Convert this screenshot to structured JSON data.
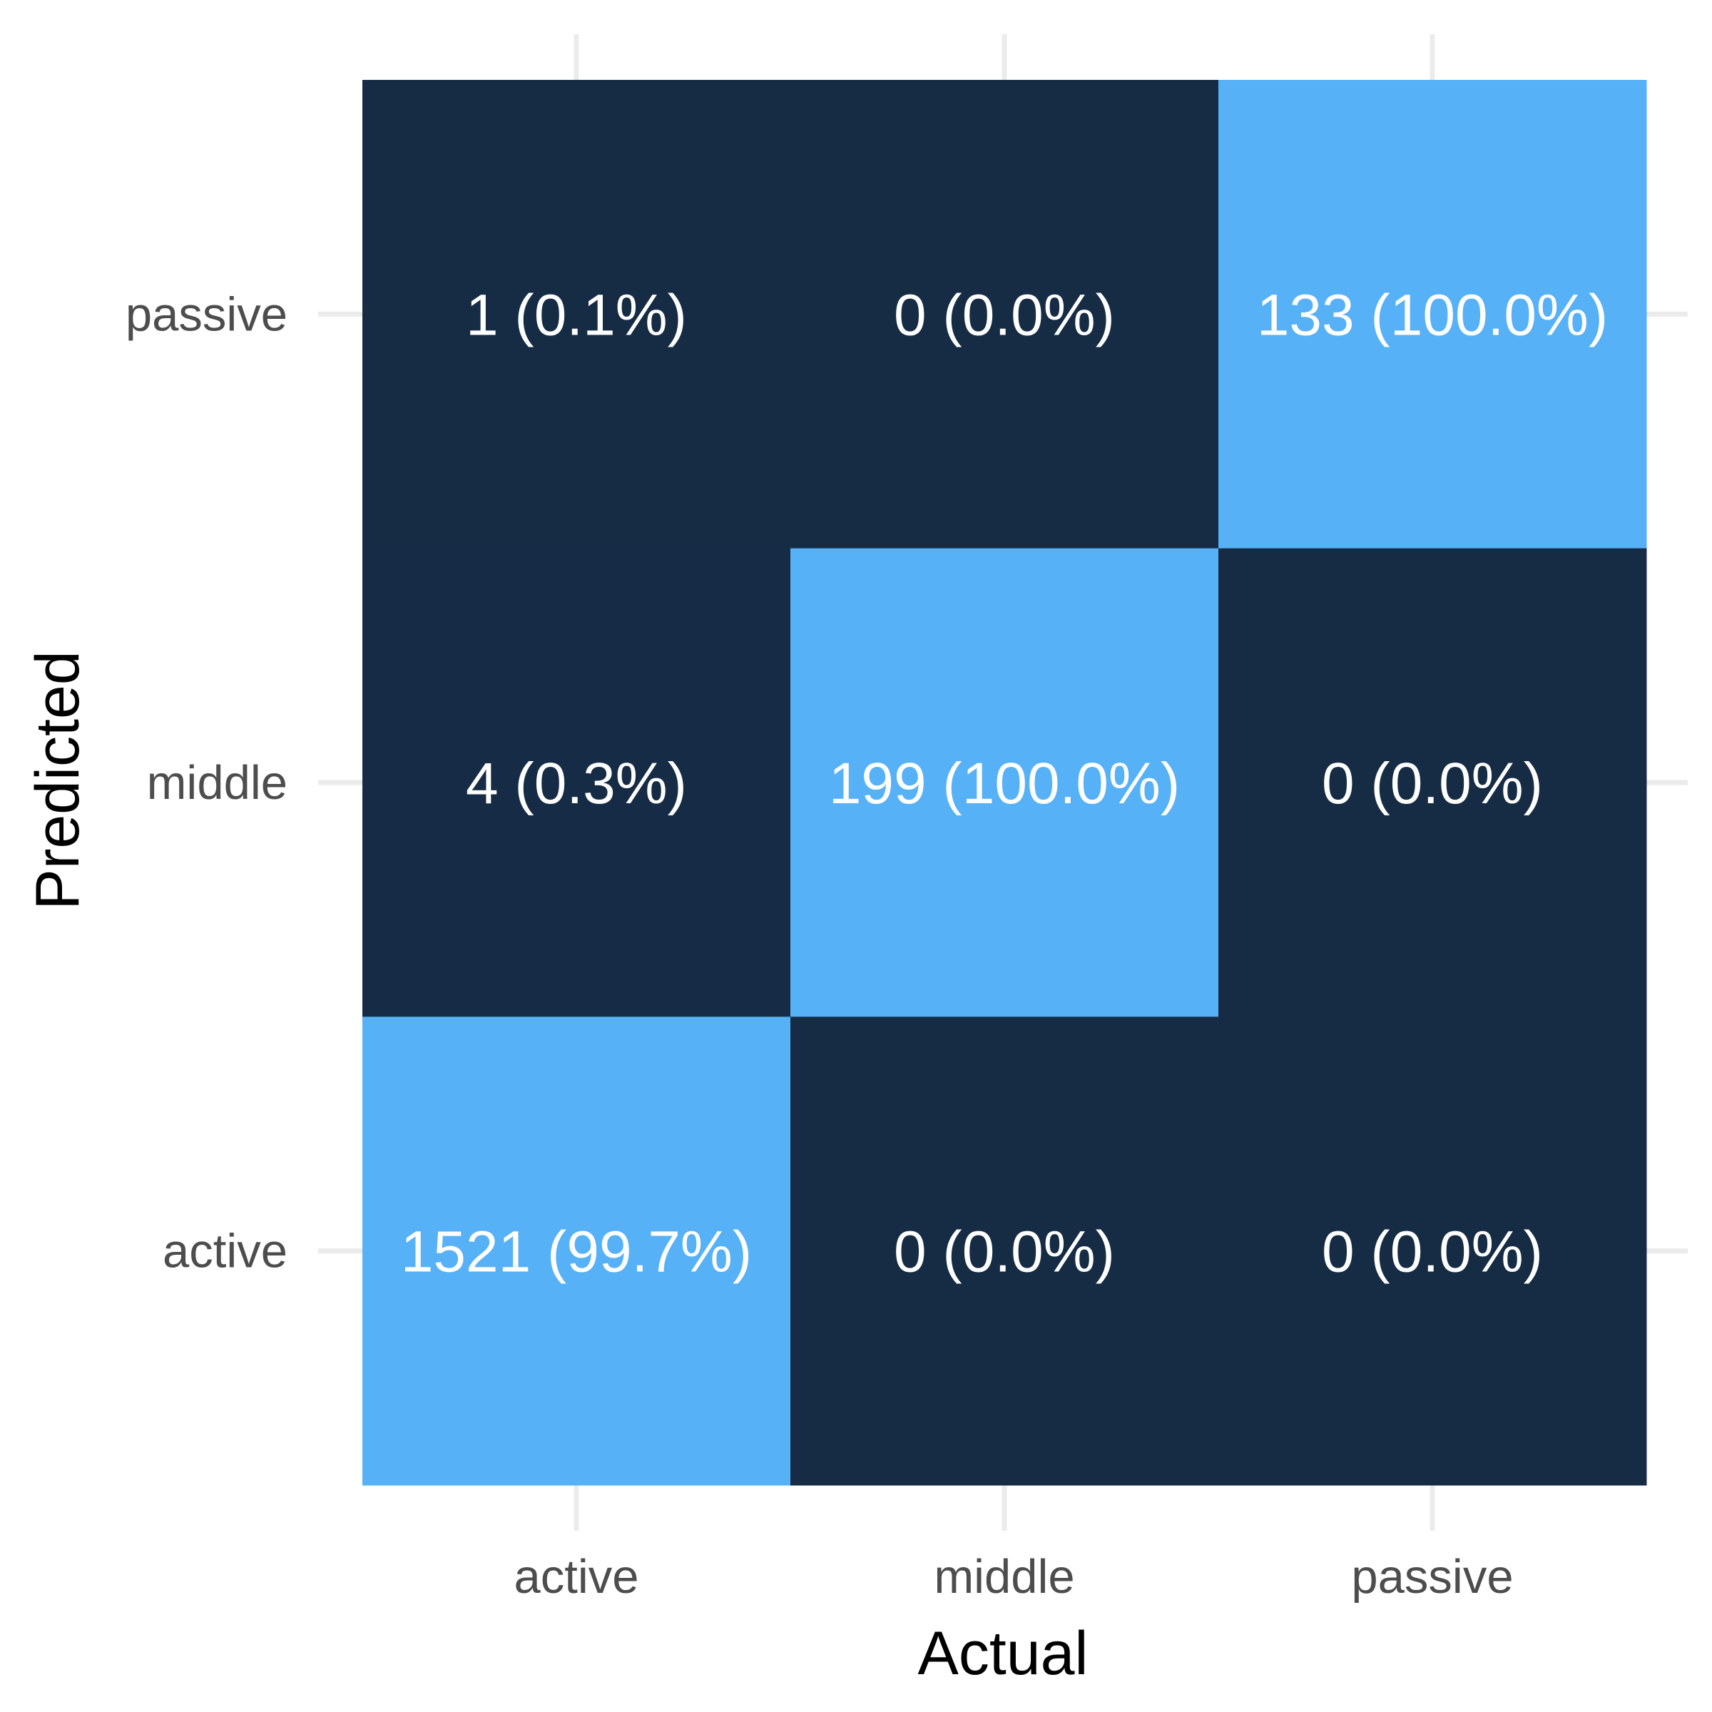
{
  "chart_data": {
    "type": "heatmap",
    "title": "",
    "xlabel": "Actual",
    "ylabel": "Predicted",
    "x_categories": [
      "active",
      "middle",
      "passive"
    ],
    "y_categories": [
      "active",
      "middle",
      "passive"
    ],
    "cells": [
      {
        "actual": "active",
        "predicted": "passive",
        "count": 1,
        "percent": 0.1,
        "label": "1 (0.1%)"
      },
      {
        "actual": "middle",
        "predicted": "passive",
        "count": 0,
        "percent": 0.0,
        "label": "0 (0.0%)"
      },
      {
        "actual": "passive",
        "predicted": "passive",
        "count": 133,
        "percent": 100.0,
        "label": "133 (100.0%)"
      },
      {
        "actual": "active",
        "predicted": "middle",
        "count": 4,
        "percent": 0.3,
        "label": "4 (0.3%)"
      },
      {
        "actual": "middle",
        "predicted": "middle",
        "count": 199,
        "percent": 100.0,
        "label": "199 (100.0%)"
      },
      {
        "actual": "passive",
        "predicted": "middle",
        "count": 0,
        "percent": 0.0,
        "label": "0 (0.0%)"
      },
      {
        "actual": "active",
        "predicted": "active",
        "count": 1521,
        "percent": 99.7,
        "label": "1521 (99.7%)"
      },
      {
        "actual": "middle",
        "predicted": "active",
        "count": 0,
        "percent": 0.0,
        "label": "0 (0.0%)"
      },
      {
        "actual": "passive",
        "predicted": "active",
        "count": 0,
        "percent": 0.0,
        "label": "0 (0.0%)"
      }
    ],
    "grid": true,
    "legend": "none",
    "colors": {
      "low": "#162C45",
      "high": "#56B1F7",
      "cell_text": "#FFFFFF",
      "tick_text": "#4D4D4D",
      "axis_title": "#000000",
      "grid": "#EBEBEB"
    }
  }
}
